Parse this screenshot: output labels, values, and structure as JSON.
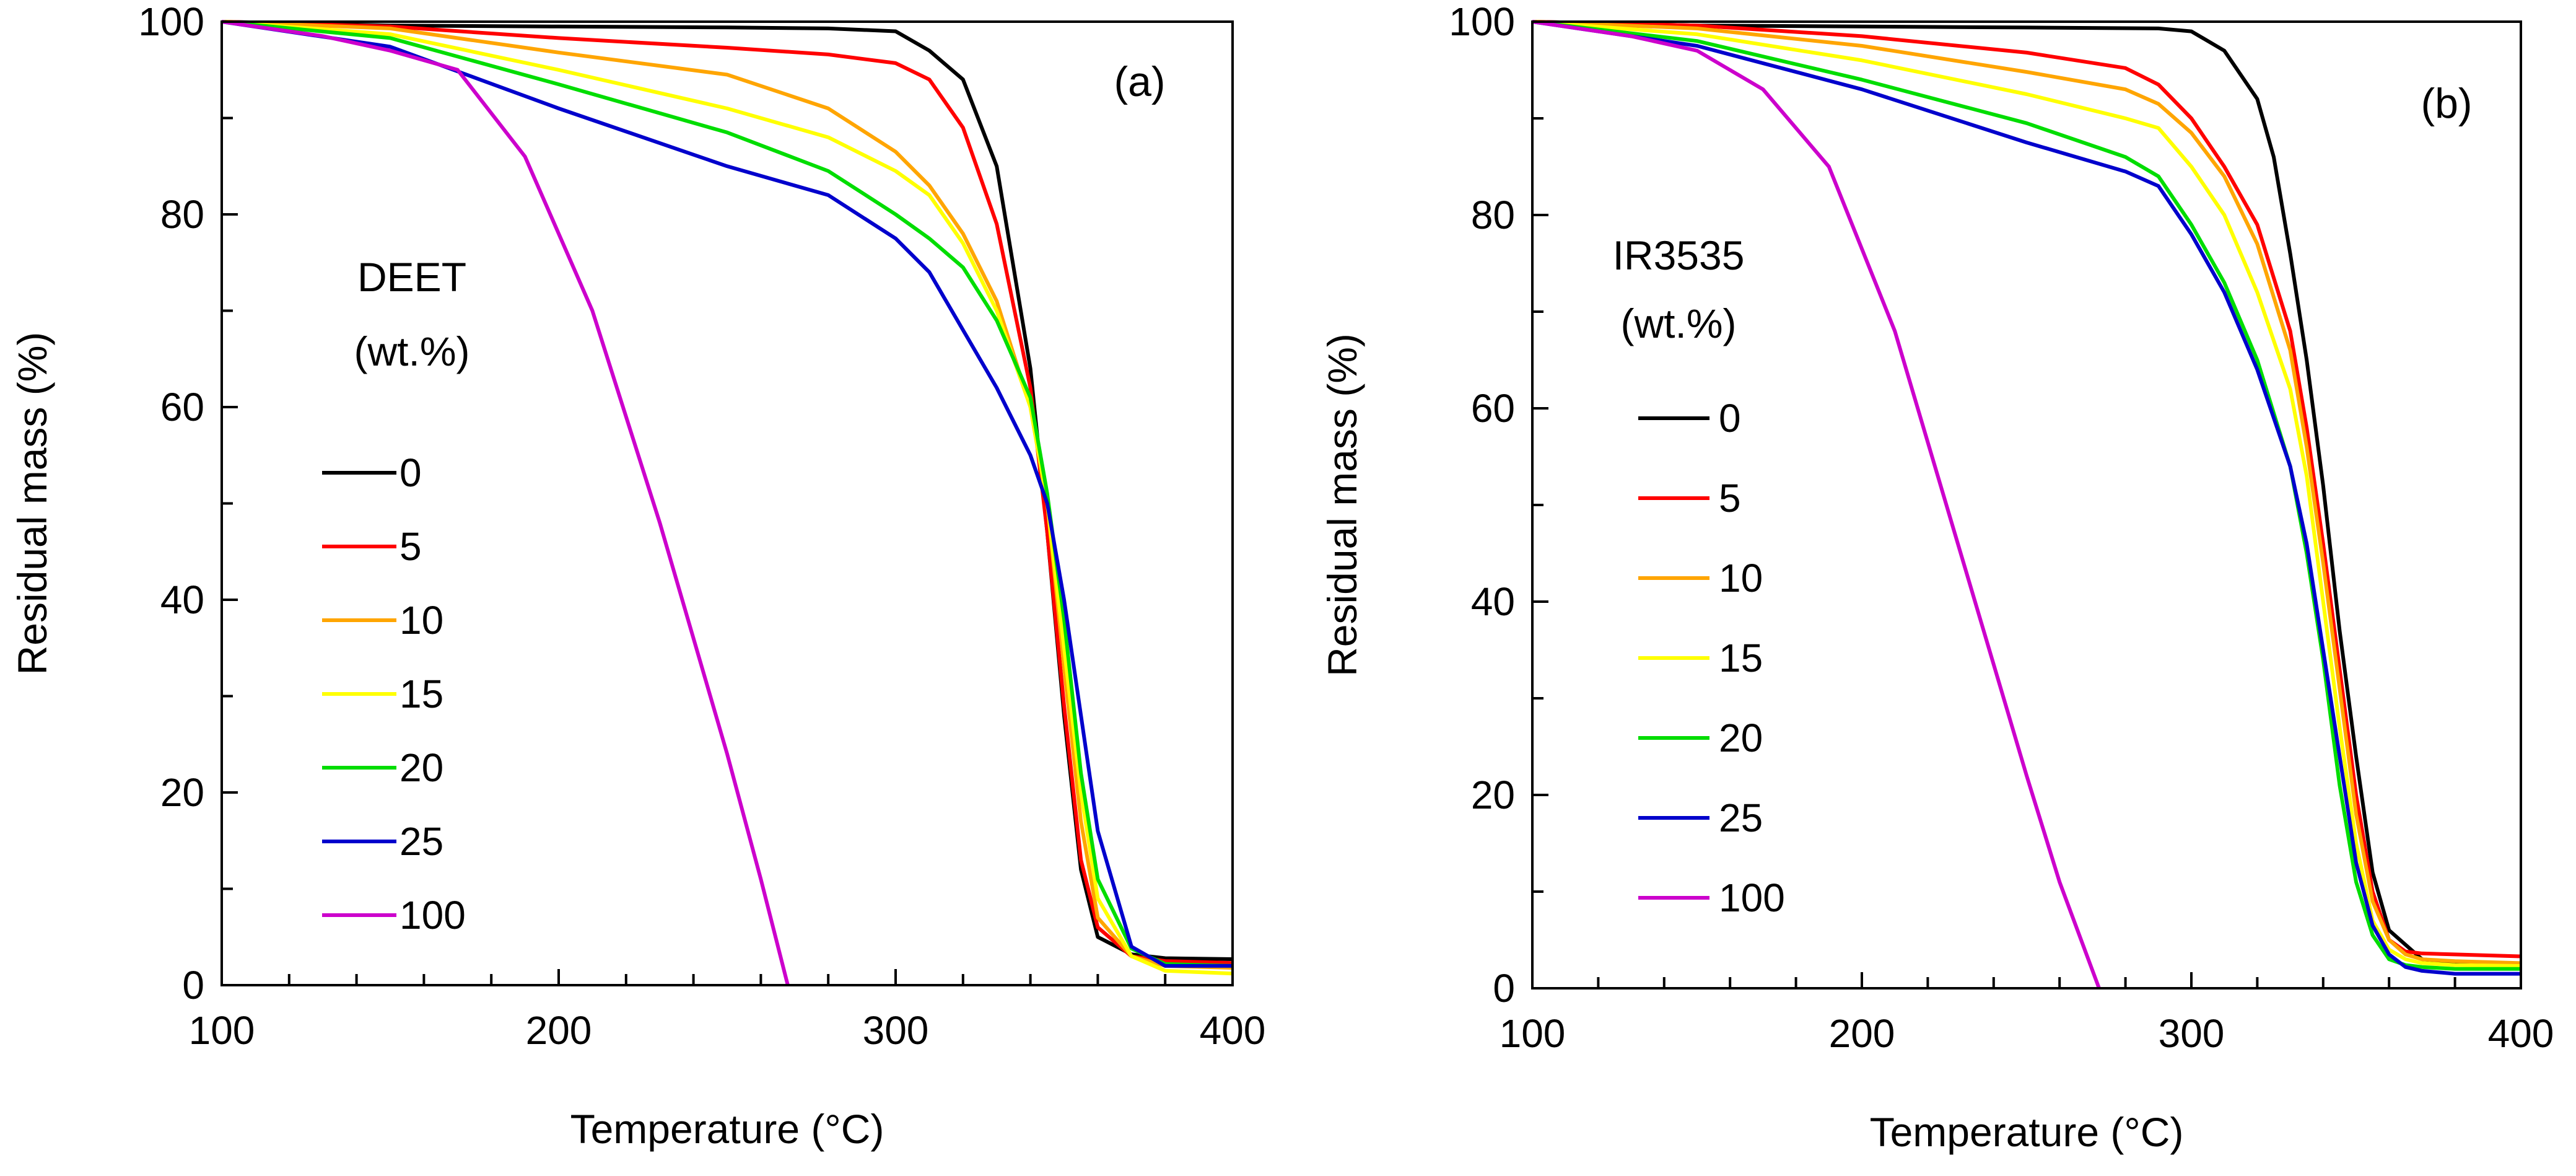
{
  "chart_data": [
    {
      "type": "line",
      "panel_label": "(a)",
      "xlabel": "Temperature  (°C)",
      "ylabel": "Residual mass (%)",
      "xlim": [
        100,
        400
      ],
      "ylim": [
        0,
        100
      ],
      "x_ticks": [
        "100",
        "200",
        "300",
        "400"
      ],
      "y_ticks": [
        "0",
        "20",
        "40",
        "60",
        "80",
        "100"
      ],
      "legend_title": [
        "DEET",
        "(wt.%)"
      ],
      "series": [
        {
          "name": "0",
          "color": "#000000",
          "x": [
            100,
            150,
            200,
            250,
            280,
            300,
            310,
            320,
            330,
            340,
            345,
            350,
            355,
            360,
            370,
            380,
            400
          ],
          "y": [
            100,
            99.6,
            99.5,
            99.4,
            99.3,
            99,
            97,
            94,
            85,
            64,
            47,
            28,
            12,
            5,
            3.2,
            2.8,
            2.7
          ]
        },
        {
          "name": "5",
          "color": "#ff0000",
          "x": [
            100,
            150,
            200,
            250,
            280,
            300,
            310,
            320,
            330,
            340,
            345,
            350,
            355,
            360,
            370,
            380,
            400
          ],
          "y": [
            100,
            99.5,
            98.3,
            97.3,
            96.6,
            95.7,
            94,
            89,
            79,
            62,
            47,
            29,
            13,
            6,
            3,
            2.5,
            2.3
          ]
        },
        {
          "name": "10",
          "color": "#ffa500",
          "x": [
            100,
            150,
            200,
            250,
            280,
            300,
            310,
            320,
            330,
            340,
            345,
            350,
            355,
            360,
            370,
            380,
            400
          ],
          "y": [
            100,
            99.3,
            96.8,
            94.5,
            91,
            86.5,
            83,
            78,
            71,
            60,
            50,
            33,
            17,
            7,
            3,
            2,
            1.8
          ]
        },
        {
          "name": "15",
          "color": "#ffff00",
          "x": [
            100,
            150,
            200,
            250,
            280,
            300,
            310,
            320,
            330,
            340,
            345,
            350,
            355,
            360,
            370,
            380,
            400
          ],
          "y": [
            100,
            98.7,
            95,
            91,
            88,
            84.5,
            82,
            77,
            70,
            60,
            50,
            35,
            20,
            9,
            3,
            1.5,
            1.2
          ]
        },
        {
          "name": "20",
          "color": "#00dd00",
          "x": [
            100,
            150,
            200,
            250,
            280,
            300,
            310,
            320,
            330,
            340,
            345,
            350,
            355,
            360,
            370,
            380,
            400
          ],
          "y": [
            100,
            98.3,
            93.5,
            88.5,
            84.5,
            80,
            77.5,
            74.5,
            69,
            61,
            51,
            38,
            22,
            11,
            3.8,
            2.2,
            2
          ]
        },
        {
          "name": "25",
          "color": "#0000cc",
          "x": [
            100,
            150,
            200,
            250,
            280,
            300,
            310,
            320,
            330,
            340,
            345,
            350,
            355,
            360,
            370,
            380,
            400
          ],
          "y": [
            100,
            97.4,
            91,
            85,
            82,
            77.5,
            74,
            68,
            62,
            55,
            50,
            40,
            28,
            16,
            4,
            2,
            2
          ]
        },
        {
          "name": "100",
          "color": "#cc00cc",
          "x": [
            100,
            130,
            150,
            170,
            190,
            210,
            230,
            250,
            260,
            268
          ],
          "y": [
            100,
            98.5,
            97,
            95,
            86,
            70,
            48,
            24,
            11,
            0
          ]
        }
      ]
    },
    {
      "type": "line",
      "panel_label": "(b)",
      "xlabel": "Temperature  (°C)",
      "ylabel": "Residual mass (%)",
      "xlim": [
        100,
        400
      ],
      "ylim": [
        0,
        100
      ],
      "x_ticks": [
        "100",
        "200",
        "300",
        "400"
      ],
      "y_ticks": [
        "0",
        "20",
        "40",
        "60",
        "80",
        "100"
      ],
      "legend_title": [
        "IR3535",
        "(wt.%)"
      ],
      "series": [
        {
          "name": "0",
          "color": "#000000",
          "x": [
            100,
            150,
            200,
            250,
            290,
            300,
            310,
            320,
            325,
            330,
            335,
            340,
            345,
            350,
            355,
            360,
            370,
            380,
            400
          ],
          "y": [
            100,
            99.6,
            99.5,
            99.4,
            99.3,
            99,
            97,
            92,
            86,
            76,
            65,
            52,
            37,
            24,
            12,
            6,
            3,
            2.7,
            2.5
          ]
        },
        {
          "name": "5",
          "color": "#ff0000",
          "x": [
            100,
            150,
            200,
            250,
            280,
            290,
            300,
            310,
            320,
            330,
            335,
            340,
            345,
            350,
            355,
            360,
            365,
            370,
            380,
            400
          ],
          "y": [
            100,
            99.6,
            98.5,
            96.8,
            95.2,
            93.5,
            90,
            85,
            79,
            68,
            58,
            46,
            33,
            20,
            10,
            5,
            3.8,
            3.6,
            3.5,
            3.3
          ]
        },
        {
          "name": "10",
          "color": "#ffa500",
          "x": [
            100,
            150,
            200,
            250,
            280,
            290,
            300,
            310,
            320,
            330,
            335,
            340,
            345,
            350,
            355,
            360,
            365,
            370,
            380,
            400
          ],
          "y": [
            100,
            99.3,
            97.5,
            94.8,
            93,
            91.5,
            88.5,
            84,
            77,
            66,
            56,
            44,
            31,
            18,
            9,
            5,
            3.5,
            3,
            2.8,
            2.6
          ]
        },
        {
          "name": "15",
          "color": "#ffff00",
          "x": [
            100,
            150,
            200,
            250,
            280,
            290,
            300,
            310,
            320,
            330,
            335,
            340,
            345,
            350,
            355,
            360,
            365,
            370,
            380,
            400
          ],
          "y": [
            100,
            98.7,
            96,
            92.5,
            90,
            89,
            85,
            80,
            72,
            62,
            53,
            40,
            27,
            15,
            7,
            4,
            3,
            2.6,
            2.4,
            2.3
          ]
        },
        {
          "name": "20",
          "color": "#00dd00",
          "x": [
            100,
            150,
            200,
            250,
            280,
            290,
            300,
            310,
            320,
            330,
            335,
            340,
            345,
            350,
            355,
            360,
            365,
            370,
            380,
            400
          ],
          "y": [
            100,
            98,
            94,
            89.5,
            86,
            84,
            79,
            73,
            65,
            54,
            45,
            34,
            21,
            11,
            5.5,
            3,
            2.4,
            2.2,
            2,
            2
          ]
        },
        {
          "name": "25",
          "color": "#0000cc",
          "x": [
            100,
            150,
            200,
            250,
            280,
            290,
            300,
            310,
            320,
            330,
            335,
            340,
            345,
            350,
            355,
            360,
            365,
            370,
            380,
            400
          ],
          "y": [
            100,
            97.5,
            93,
            87.5,
            84.5,
            83,
            78,
            72,
            64,
            54,
            46,
            35,
            24,
            13,
            6.5,
            3.5,
            2.2,
            1.8,
            1.5,
            1.5
          ]
        },
        {
          "name": "100",
          "color": "#cc00cc",
          "x": [
            100,
            130,
            150,
            170,
            190,
            210,
            230,
            250,
            260,
            272
          ],
          "y": [
            100,
            98.5,
            97,
            93,
            85,
            68,
            45,
            22,
            11,
            0
          ]
        }
      ]
    }
  ]
}
